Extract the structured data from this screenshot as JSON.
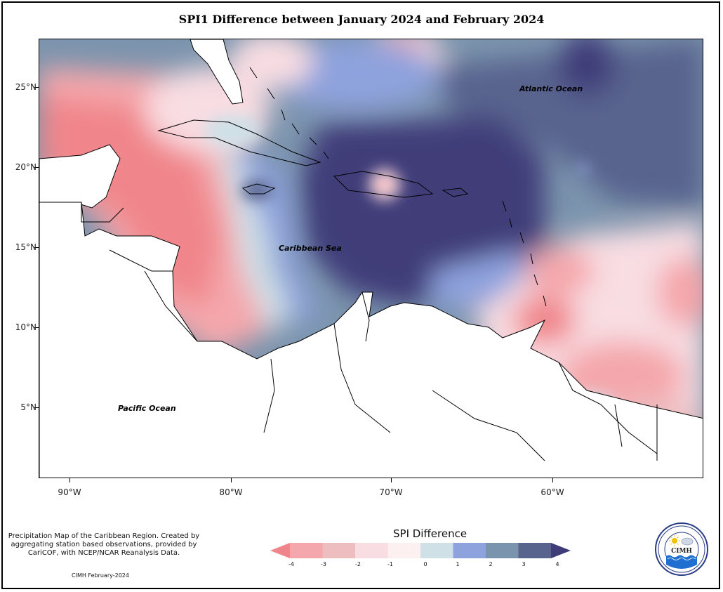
{
  "title": "SPI1 Difference between January 2024 and February 2024",
  "axes": {
    "y_labels": [
      "25°N",
      "20°N",
      "15°N",
      "10°N",
      "5°N"
    ],
    "x_labels": [
      "90°W",
      "80°W",
      "70°W",
      "60°W"
    ]
  },
  "ocean_labels": {
    "atlantic": "Atlantic Ocean",
    "caribbean": "Caribbean Sea",
    "pacific": "Pacific Ocean"
  },
  "footer": {
    "note": "Precipitation Map of the Caribbean Region. Created by aggregating station based observations, provided by CariCOF, with NCEP/NCAR Reanalysis Data.",
    "credit": "CIMH February-2024"
  },
  "legend": {
    "title": "SPI Difference",
    "ticks": [
      "-4",
      "-3",
      "-2",
      "-1",
      "0",
      "1",
      "2",
      "3",
      "4"
    ],
    "colors": [
      "#f0868b",
      "#f4a7ac",
      "#edbdc0",
      "#f8dde2",
      "#fdf0f0",
      "#cfe0e7",
      "#8ea2dd",
      "#7b94ad",
      "#58648e",
      "#3f3d79"
    ]
  },
  "logo": {
    "name": "CIMH",
    "ring_text": "Caribbean Institute for Meteorology and Hydrology"
  }
}
